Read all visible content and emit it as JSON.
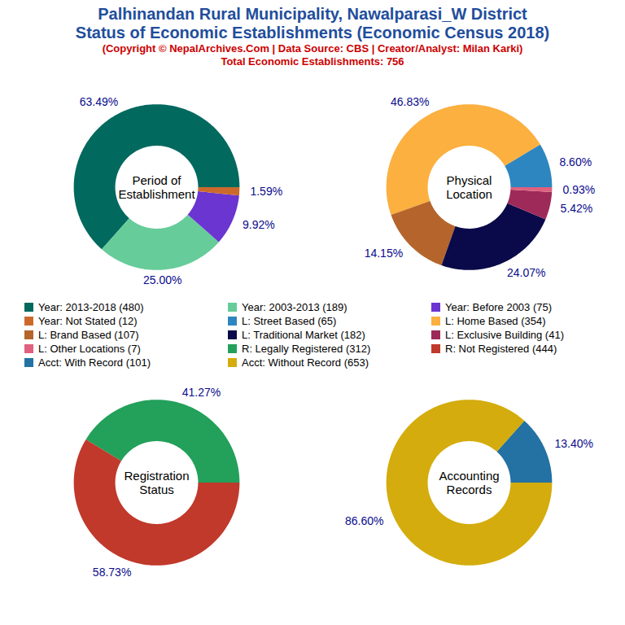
{
  "header": {
    "title": [
      "Palhinandan Rural Municipality, Nawalparasi_W District",
      "Status of Economic Establishments (Economic Census 2018)"
    ],
    "subtitle": [
      "(Copyright © NepalArchives.Com | Data Source: CBS | Creator/Analyst: Milan Karki)",
      "Total Economic Establishments: 756"
    ]
  },
  "chart_data": [
    {
      "type": "pie",
      "title": "Period of\nEstablishment",
      "categories": [
        "Year: 2013-2018 (480)",
        "Year: 2003-2013 (189)",
        "Year: Before 2003 (75)",
        "Year: Not Stated (12)"
      ],
      "values": [
        63.49,
        25.0,
        9.92,
        1.59
      ],
      "value_labels": [
        "63.49%",
        "25.00%",
        "9.92%",
        "1.59%"
      ],
      "colors": [
        "#02695f",
        "#66cc99",
        "#6a35d0",
        "#cc6a2c"
      ],
      "data_labels": true,
      "legend": "center"
    },
    {
      "type": "pie",
      "title": "Physical\nLocation",
      "categories": [
        "L: Street Based (65)",
        "L: Home Based (354)",
        "L: Brand Based (107)",
        "L: Traditional Market (182)",
        "L: Exclusive Building (41)",
        "L: Other Locations (7)"
      ],
      "values": [
        8.6,
        46.83,
        14.15,
        24.07,
        5.42,
        0.93
      ],
      "value_labels": [
        "8.60%",
        "46.83%",
        "14.15%",
        "24.07%",
        "5.42%",
        "0.93%"
      ],
      "colors": [
        "#2e86c1",
        "#fbb040",
        "#b5652b",
        "#0a0a4a",
        "#9e2a5a",
        "#e0607e"
      ],
      "data_labels": true,
      "legend": "center"
    },
    {
      "type": "pie",
      "title": "Registration\nStatus",
      "categories": [
        "R: Legally Registered (312)",
        "R: Not Registered (444)"
      ],
      "values": [
        41.27,
        58.73
      ],
      "value_labels": [
        "41.27%",
        "58.73%"
      ],
      "colors": [
        "#23a05a",
        "#c0392b"
      ],
      "data_labels": true,
      "legend": "center"
    },
    {
      "type": "pie",
      "title": "Accounting\nRecords",
      "categories": [
        "Acct: With Record (101)",
        "Acct: Without Record (653)"
      ],
      "values": [
        13.4,
        86.6
      ],
      "value_labels": [
        "13.40%",
        "86.60%"
      ],
      "colors": [
        "#2471a3",
        "#d4ac0d"
      ],
      "data_labels": true,
      "legend": "center"
    }
  ]
}
